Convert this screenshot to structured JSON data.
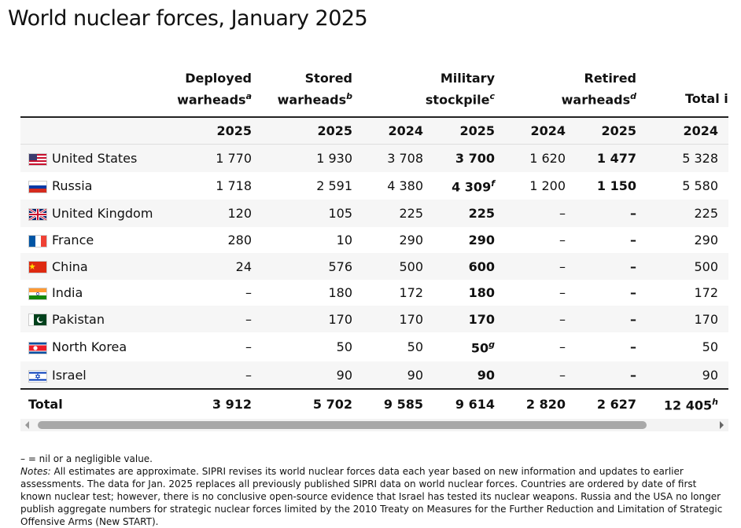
{
  "title": "World nuclear forces, January 2025",
  "table": {
    "groups": [
      {
        "line1": "Deployed",
        "line2": "warheads",
        "note": "a"
      },
      {
        "line1": "Stored",
        "line2": "warheads",
        "note": "b"
      },
      {
        "line1": "Military",
        "line2": "stockpile",
        "note": "c"
      },
      {
        "line1": "Retired",
        "line2": "warheads",
        "note": "d"
      },
      {
        "line1": "Total in"
      }
    ],
    "years": [
      "2025",
      "2025",
      "2024",
      "2025",
      "2024",
      "2025",
      "2024"
    ],
    "rows": [
      {
        "country": "United States",
        "cells": [
          "1 770",
          "1 930",
          "3 708",
          "3 700",
          "1 620",
          "1 477",
          "5 328"
        ]
      },
      {
        "country": "Russia",
        "cells": [
          "1 718",
          "2 591",
          "4 380",
          {
            "text": "4 309",
            "note": "f"
          },
          "1 200",
          "1 150",
          "5 580"
        ]
      },
      {
        "country": "United Kingdom",
        "cells": [
          "120",
          "105",
          "225",
          "225",
          "–",
          "–",
          "225"
        ]
      },
      {
        "country": "France",
        "cells": [
          "280",
          "10",
          "290",
          "290",
          "–",
          "–",
          "290"
        ]
      },
      {
        "country": "China",
        "cells": [
          "24",
          "576",
          "500",
          "600",
          "–",
          "–",
          "500"
        ]
      },
      {
        "country": "India",
        "cells": [
          "–",
          "180",
          "172",
          "180",
          "–",
          "–",
          "172"
        ]
      },
      {
        "country": "Pakistan",
        "cells": [
          "–",
          "170",
          "170",
          "170",
          "–",
          "–",
          "170"
        ]
      },
      {
        "country": "North Korea",
        "cells": [
          "–",
          "50",
          "50",
          {
            "text": "50",
            "note": "g"
          },
          "–",
          "–",
          "50"
        ]
      },
      {
        "country": "Israel",
        "cells": [
          "–",
          "90",
          "90",
          "90",
          "–",
          "–",
          "90"
        ]
      }
    ],
    "total": {
      "label": "Total",
      "cells": [
        "3 912",
        "5 702",
        "9 585",
        "9 614",
        "2 820",
        "2 627",
        {
          "text": "12 405",
          "note": "h"
        }
      ]
    }
  },
  "footnotes": {
    "nil": "– = nil or a negligible value.",
    "notes_label": "Notes:",
    "notes_text": " All estimates are approximate. SIPRI revises its world nuclear forces data each year based on new information and updates to earlier assessments. The data for Jan. 2025 replaces all previously published SIPRI data on world nuclear forces. Countries are ordered by date of first known nuclear test; however, there is no conclusive open-source evidence that Israel has tested its nuclear weapons. Russia and the USA no longer publish aggregate numbers for strategic nuclear forces limited by the 2010 Treaty on Measures for the Further Reduction and Limitation of Strategic Offensive Arms (New START)."
  }
}
